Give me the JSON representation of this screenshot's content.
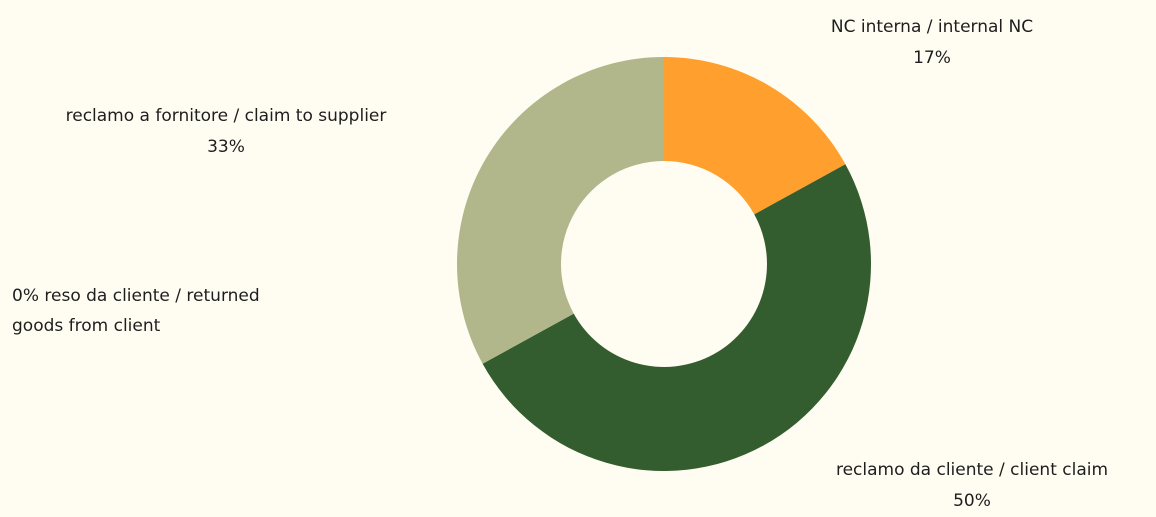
{
  "chart_data": {
    "type": "pie",
    "categories": [
      "NC interna / internal NC",
      "reclamo da cliente / client claim",
      "reso da cliente / returned goods from client",
      "reclamo a fornitore / claim to supplier"
    ],
    "values": [
      17,
      50,
      0,
      33
    ],
    "value_labels": [
      "17%",
      "50%",
      "0%",
      "33%"
    ],
    "colors": [
      "#ff9f2d",
      "#345d2f",
      "#8a6d3b",
      "#b1b78a"
    ]
  }
}
